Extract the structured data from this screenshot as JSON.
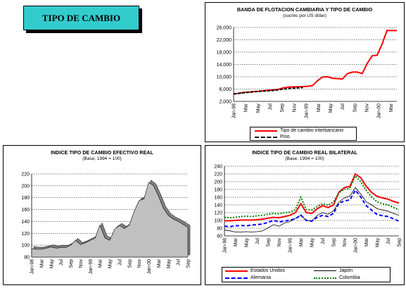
{
  "page_title": "TIPO DE CAMBIO",
  "chart_data": [
    {
      "id": "band",
      "type": "line",
      "title": "BANDA DE FLOTACION CAMBIARIA Y TIPO DE CAMBIO",
      "subtitle": "(sucres por US dólar)",
      "x_labels": [
        "Jan-98",
        "Mar",
        "May",
        "Jul",
        "Sep",
        "Nov",
        "Jan-99",
        "Mar",
        "May",
        "Jul",
        "Sep",
        "Nov",
        "Jan-00",
        "Mar"
      ],
      "y_ticks": [
        "2,000",
        "6,000",
        "10,000",
        "14,000",
        "18,000",
        "22,000",
        "26,000"
      ],
      "ylim": [
        2000,
        26000
      ],
      "grid": true,
      "series": [
        {
          "name": "Tipo de cambio interbancario",
          "color": "#ff0000",
          "x": [
            0,
            1,
            2,
            3,
            4,
            5,
            6,
            7,
            8,
            9,
            10,
            11,
            12,
            13,
            14,
            15,
            16,
            17,
            18,
            19,
            20,
            21,
            22,
            23,
            24,
            25,
            26,
            27
          ],
          "values": [
            4450,
            4600,
            4900,
            5000,
            5200,
            5300,
            5450,
            5600,
            5700,
            5900,
            6400,
            6600,
            6700,
            6750,
            6800,
            6900,
            7200,
            8800,
            9900,
            10000,
            9500,
            9400,
            9300,
            11000,
            11500,
            11500,
            11000,
            14300
          ]
        },
        {
          "name": "Piso",
          "color": "#000000",
          "x": [
            0,
            2,
            4,
            6,
            8,
            10,
            12,
            14
          ],
          "values": [
            4400,
            4800,
            5100,
            5350,
            5550,
            5950,
            6300,
            6500
          ]
        }
      ],
      "tail": {
        "x": [
          28,
          29,
          30,
          31,
          32,
          33
        ],
        "values": [
          16800,
          17000,
          20500,
          25000,
          25000,
          25000
        ]
      }
    },
    {
      "id": "real",
      "type": "area",
      "title": "INDICE TIPO DE CAMBIO EFECTIVO REAL",
      "subtitle": "(Base, 1994 = 100)",
      "x_labels": [
        "Jan-98",
        "Mar",
        "May",
        "Jul",
        "Sep",
        "Nov",
        "Jan-99",
        "Mar",
        "May",
        "Jul",
        "Sep",
        "Nov",
        "Jan-00",
        "Mar",
        "May",
        "Jul",
        "Sep"
      ],
      "y_ticks": [
        "80",
        "100",
        "120",
        "140",
        "160",
        "180",
        "200",
        "220"
      ],
      "ylim": [
        80,
        220
      ],
      "grid": true,
      "color": "#c0c0c0",
      "values": [
        94,
        93,
        93,
        95,
        97,
        95,
        96,
        96,
        100,
        108,
        101,
        104,
        108,
        112,
        134,
        112,
        108,
        127,
        133,
        128,
        134,
        157,
        175,
        178,
        206,
        200,
        182,
        162,
        150,
        144,
        140,
        135,
        130
      ]
    },
    {
      "id": "bilateral",
      "type": "line",
      "title": "INDICE TIPO DE CAMBIO REAL BILATERAL",
      "subtitle": "(Base, 1994 = 100)",
      "x_labels": [
        "Jan-98",
        "Mar",
        "May",
        "Jul",
        "Sep",
        "Nov",
        "Jan-99",
        "Mar",
        "May",
        "Jul",
        "Sep",
        "Nov",
        "Jan-00",
        "Mar",
        "May",
        "Jul",
        "Sep"
      ],
      "y_ticks": [
        "60",
        "80",
        "100",
        "120",
        "140",
        "160",
        "180",
        "200",
        "220",
        "240"
      ],
      "ylim": [
        60,
        240
      ],
      "grid": true,
      "series": [
        {
          "name": "Estados Unidos",
          "color": "#ff0000",
          "values": [
            99,
            99,
            100,
            101,
            101,
            101,
            102,
            103,
            106,
            108,
            107,
            110,
            113,
            120,
            143,
            120,
            118,
            130,
            138,
            133,
            140,
            173,
            185,
            188,
            220,
            210,
            188,
            172,
            162,
            158,
            155,
            149,
            145
          ]
        },
        {
          "name": "Japón",
          "color": "#000000",
          "values": [
            75,
            73,
            70,
            70,
            71,
            70,
            71,
            73,
            81,
            89,
            85,
            93,
            97,
            105,
            113,
            100,
            98,
            113,
            120,
            116,
            125,
            148,
            158,
            163,
            185,
            168,
            148,
            140,
            130,
            127,
            124,
            118,
            113
          ]
        },
        {
          "name": "Alemania",
          "color": "#0000ff",
          "values": [
            85,
            84,
            86,
            87,
            86,
            88,
            89,
            91,
            95,
            100,
            96,
            98,
            101,
            104,
            114,
            100,
            98,
            108,
            113,
            110,
            118,
            145,
            150,
            153,
            178,
            160,
            138,
            126,
            115,
            112,
            110,
            104,
            98
          ]
        },
        {
          "name": "Colombia",
          "color": "#008000",
          "values": [
            108,
            107,
            108,
            110,
            111,
            110,
            112,
            113,
            116,
            118,
            117,
            120,
            121,
            128,
            160,
            128,
            127,
            136,
            143,
            139,
            148,
            172,
            180,
            183,
            215,
            200,
            177,
            160,
            148,
            143,
            140,
            133,
            128
          ]
        }
      ]
    }
  ]
}
